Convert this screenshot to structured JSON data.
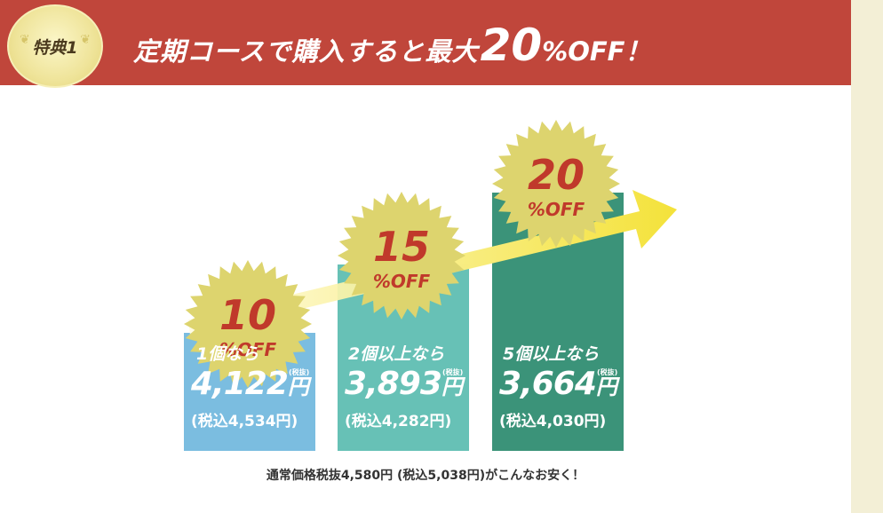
{
  "header": {
    "badge": "特典1",
    "headline_prefix": "定期コースで購入すると最大",
    "headline_number": "20",
    "headline_suffix": "%OFF！"
  },
  "colors": {
    "header_bg": "#c0463b",
    "bar_1": "#7bbde0",
    "bar_2": "#67c1b6",
    "bar_3": "#3b9379",
    "burst": "#ddd46e",
    "discount_text": "#c0392b",
    "arrow": "#f4e23a"
  },
  "tiers": [
    {
      "discount_pct": "10",
      "off_label": "%OFF",
      "quantity": "1個なら",
      "price": "4,122",
      "yen": "円",
      "tax_note": "(税抜)",
      "tax_included": "(税込4,534円)",
      "level": 0.38
    },
    {
      "discount_pct": "15",
      "off_label": "%OFF",
      "quantity": "2個以上なら",
      "price": "3,893",
      "yen": "円",
      "tax_note": "(税抜)",
      "tax_included": "(税込4,282円)",
      "level": 0.6
    },
    {
      "discount_pct": "20",
      "off_label": "%OFF",
      "quantity": "5個以上なら",
      "price": "3,664",
      "yen": "円",
      "tax_note": "(税抜)",
      "tax_included": "(税込4,030円)",
      "level": 0.83
    }
  ],
  "footnote": "通常価格税抜4,580円 (税込5,038円)がこんなお安く！"
}
